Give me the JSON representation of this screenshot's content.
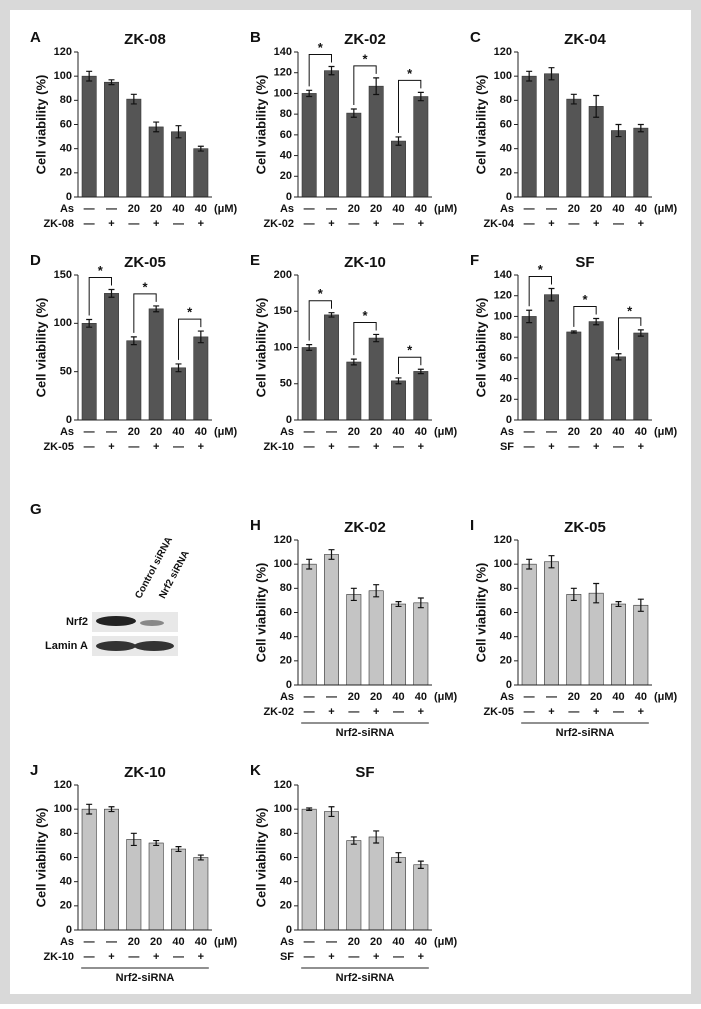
{
  "chart_data": [
    {
      "type": "bar",
      "panel": "A",
      "title": "ZK-08",
      "y_label": "Cell viability (%)",
      "color": "#555555",
      "values": [
        100,
        95,
        81,
        58,
        54,
        40
      ],
      "errors": [
        4,
        2,
        4,
        4,
        5,
        2
      ],
      "ylim": [
        0,
        120
      ],
      "yticks": [
        0,
        20,
        40,
        60,
        80,
        100,
        120
      ],
      "rows": [
        {
          "label": "As",
          "cells": [
            "—",
            "—",
            "20",
            "20",
            "40",
            "40"
          ],
          "unit": "(μM)"
        },
        {
          "label": "ZK-08",
          "cells": [
            "—",
            "+",
            "—",
            "+",
            "—",
            "+"
          ]
        }
      ]
    },
    {
      "type": "bar",
      "panel": "B",
      "title": "ZK-02",
      "y_label": "Cell viability (%)",
      "color": "#555555",
      "values": [
        100,
        122,
        81,
        107,
        54,
        97
      ],
      "errors": [
        3,
        4,
        4,
        8,
        4,
        4
      ],
      "ylim": [
        0,
        140
      ],
      "yticks": [
        0,
        20,
        40,
        60,
        80,
        100,
        120,
        140
      ],
      "rows": [
        {
          "label": "As",
          "cells": [
            "—",
            "—",
            "20",
            "20",
            "40",
            "40"
          ],
          "unit": "(μM)"
        },
        {
          "label": "ZK-02",
          "cells": [
            "—",
            "+",
            "—",
            "+",
            "—",
            "+"
          ]
        }
      ],
      "significance": [
        {
          "label": "*",
          "between": [
            0,
            1
          ]
        },
        {
          "label": "*",
          "between": [
            2,
            3
          ]
        },
        {
          "label": "*",
          "between": [
            4,
            5
          ]
        }
      ]
    },
    {
      "type": "bar",
      "panel": "C",
      "title": "ZK-04",
      "y_label": "Cell viability (%)",
      "color": "#555555",
      "values": [
        100,
        102,
        81,
        75,
        55,
        57
      ],
      "errors": [
        4,
        5,
        4,
        9,
        5,
        3
      ],
      "ylim": [
        0,
        120
      ],
      "yticks": [
        0,
        20,
        40,
        60,
        80,
        100,
        120
      ],
      "rows": [
        {
          "label": "As",
          "cells": [
            "—",
            "—",
            "20",
            "20",
            "40",
            "40"
          ],
          "unit": "(μM)"
        },
        {
          "label": "ZK-04",
          "cells": [
            "—",
            "+",
            "—",
            "+",
            "—",
            "+"
          ]
        }
      ]
    },
    {
      "type": "bar",
      "panel": "D",
      "title": "ZK-05",
      "y_label": "Cell viability (%)",
      "color": "#555555",
      "values": [
        100,
        131,
        82,
        115,
        54,
        86
      ],
      "errors": [
        4,
        4,
        4,
        3,
        4,
        6
      ],
      "ylim": [
        0,
        150
      ],
      "yticks": [
        0,
        50,
        100,
        150
      ],
      "rows": [
        {
          "label": "As",
          "cells": [
            "—",
            "—",
            "20",
            "20",
            "40",
            "40"
          ],
          "unit": "(μM)"
        },
        {
          "label": "ZK-05",
          "cells": [
            "—",
            "+",
            "—",
            "+",
            "—",
            "+"
          ]
        }
      ],
      "significance": [
        {
          "label": "*",
          "between": [
            0,
            1
          ]
        },
        {
          "label": "*",
          "between": [
            2,
            3
          ]
        },
        {
          "label": "*",
          "between": [
            4,
            5
          ]
        }
      ]
    },
    {
      "type": "bar",
      "panel": "E",
      "title": "ZK-10",
      "y_label": "Cell viability (%)",
      "color": "#555555",
      "values": [
        100,
        145,
        80,
        113,
        54,
        67
      ],
      "errors": [
        4,
        3,
        4,
        5,
        4,
        3
      ],
      "ylim": [
        0,
        200
      ],
      "yticks": [
        0,
        50,
        100,
        150,
        200
      ],
      "rows": [
        {
          "label": "As",
          "cells": [
            "—",
            "—",
            "20",
            "20",
            "40",
            "40"
          ],
          "unit": "(μM)"
        },
        {
          "label": "ZK-10",
          "cells": [
            "—",
            "+",
            "—",
            "+",
            "—",
            "+"
          ]
        }
      ],
      "significance": [
        {
          "label": "*",
          "between": [
            0,
            1
          ]
        },
        {
          "label": "*",
          "between": [
            2,
            3
          ]
        },
        {
          "label": "*",
          "between": [
            4,
            5
          ]
        }
      ]
    },
    {
      "type": "bar",
      "panel": "F",
      "title": "SF",
      "y_label": "Cell viability (%)",
      "color": "#555555",
      "values": [
        100,
        121,
        85,
        95,
        61,
        84
      ],
      "errors": [
        6,
        6,
        1,
        3,
        3,
        3
      ],
      "ylim": [
        0,
        140
      ],
      "yticks": [
        0,
        20,
        40,
        60,
        80,
        100,
        120,
        140
      ],
      "rows": [
        {
          "label": "As",
          "cells": [
            "—",
            "—",
            "20",
            "20",
            "40",
            "40"
          ],
          "unit": "(μM)"
        },
        {
          "label": "SF",
          "cells": [
            "—",
            "+",
            "—",
            "+",
            "—",
            "+"
          ]
        }
      ],
      "significance": [
        {
          "label": "*",
          "between": [
            0,
            1
          ]
        },
        {
          "label": "*",
          "between": [
            2,
            3
          ]
        },
        {
          "label": "*",
          "between": [
            4,
            5
          ]
        }
      ]
    },
    {
      "type": "bar",
      "panel": "H",
      "title": "ZK-02",
      "y_label": "Cell viability (%)",
      "color": "#c4c4c4",
      "values": [
        100,
        108,
        75,
        78,
        67,
        68
      ],
      "errors": [
        4,
        4,
        5,
        5,
        2,
        4
      ],
      "ylim": [
        0,
        120
      ],
      "yticks": [
        0,
        20,
        40,
        60,
        80,
        100,
        120
      ],
      "rows": [
        {
          "label": "As",
          "cells": [
            "—",
            "—",
            "20",
            "20",
            "40",
            "40"
          ],
          "unit": "(μM)"
        },
        {
          "label": "ZK-02",
          "cells": [
            "—",
            "+",
            "—",
            "+",
            "—",
            "+"
          ]
        }
      ],
      "group_label": "Nrf2-siRNA"
    },
    {
      "type": "bar",
      "panel": "I",
      "title": "ZK-05",
      "y_label": "Cell viability (%)",
      "color": "#c4c4c4",
      "values": [
        100,
        102,
        75,
        76,
        67,
        66
      ],
      "errors": [
        4,
        5,
        5,
        8,
        2,
        5
      ],
      "ylim": [
        0,
        120
      ],
      "yticks": [
        0,
        20,
        40,
        60,
        80,
        100,
        120
      ],
      "rows": [
        {
          "label": "As",
          "cells": [
            "—",
            "—",
            "20",
            "20",
            "40",
            "40"
          ],
          "unit": "(μM)"
        },
        {
          "label": "ZK-05",
          "cells": [
            "—",
            "+",
            "—",
            "+",
            "—",
            "+"
          ]
        }
      ],
      "group_label": "Nrf2-siRNA"
    },
    {
      "type": "bar",
      "panel": "J",
      "title": "ZK-10",
      "y_label": "Cell viability (%)",
      "color": "#c4c4c4",
      "values": [
        100,
        100,
        75,
        72,
        67,
        60
      ],
      "errors": [
        4,
        2,
        5,
        2,
        2,
        2
      ],
      "ylim": [
        0,
        120
      ],
      "yticks": [
        0,
        20,
        40,
        60,
        80,
        100,
        120
      ],
      "rows": [
        {
          "label": "As",
          "cells": [
            "—",
            "—",
            "20",
            "20",
            "40",
            "40"
          ],
          "unit": "(μM)"
        },
        {
          "label": "ZK-10",
          "cells": [
            "—",
            "+",
            "—",
            "+",
            "—",
            "+"
          ]
        }
      ],
      "group_label": "Nrf2-siRNA"
    },
    {
      "type": "bar",
      "panel": "K",
      "title": "SF",
      "y_label": "Cell viability (%)",
      "color": "#c4c4c4",
      "values": [
        100,
        98,
        74,
        77,
        60,
        54
      ],
      "errors": [
        1,
        4,
        3,
        5,
        4,
        3
      ],
      "ylim": [
        0,
        120
      ],
      "yticks": [
        0,
        20,
        40,
        60,
        80,
        100,
        120
      ],
      "rows": [
        {
          "label": "As",
          "cells": [
            "—",
            "—",
            "20",
            "20",
            "40",
            "40"
          ],
          "unit": "(μM)"
        },
        {
          "label": "SF",
          "cells": [
            "—",
            "+",
            "—",
            "+",
            "—",
            "+"
          ]
        }
      ],
      "group_label": "Nrf2-siRNA"
    }
  ],
  "blot": {
    "panel": "G",
    "lanes": [
      "Control siRNA",
      "Nrf2 siRNA"
    ],
    "rows": [
      "Nrf2",
      "Lamin A"
    ]
  }
}
